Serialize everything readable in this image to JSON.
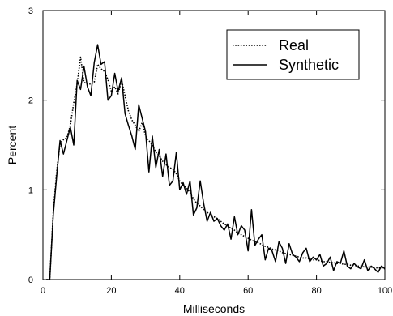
{
  "chart_data": {
    "type": "line",
    "title": "",
    "xlabel": "Milliseconds",
    "ylabel": "Percent",
    "xlim": [
      0,
      100
    ],
    "ylim": [
      0,
      3
    ],
    "x_ticks": [
      0,
      20,
      40,
      60,
      80,
      100
    ],
    "y_ticks": [
      0,
      1,
      2,
      3
    ],
    "grid": false,
    "legend_position": "top-right",
    "series": [
      {
        "name": "Real",
        "line_style": "dotted",
        "color": "#000000",
        "points": [
          [
            1,
            0.0
          ],
          [
            2,
            0.0
          ],
          [
            3,
            0.75
          ],
          [
            4,
            1.2
          ],
          [
            5,
            1.52
          ],
          [
            6,
            1.56
          ],
          [
            7,
            1.58
          ],
          [
            8,
            1.72
          ],
          [
            9,
            1.97
          ],
          [
            10,
            2.18
          ],
          [
            11,
            2.48
          ],
          [
            12,
            2.2
          ],
          [
            13,
            2.18
          ],
          [
            14,
            2.18
          ],
          [
            15,
            2.2
          ],
          [
            16,
            2.4
          ],
          [
            17,
            2.35
          ],
          [
            18,
            2.32
          ],
          [
            19,
            2.23
          ],
          [
            20,
            2.1
          ],
          [
            21,
            2.15
          ],
          [
            22,
            2.07
          ],
          [
            23,
            2.22
          ],
          [
            24,
            2.05
          ],
          [
            25,
            1.88
          ],
          [
            26,
            1.78
          ],
          [
            27,
            1.72
          ],
          [
            28,
            1.65
          ],
          [
            29,
            1.75
          ],
          [
            30,
            1.6
          ],
          [
            31,
            1.55
          ],
          [
            32,
            1.5
          ],
          [
            33,
            1.42
          ],
          [
            34,
            1.38
          ],
          [
            35,
            1.32
          ],
          [
            36,
            1.28
          ],
          [
            37,
            1.25
          ],
          [
            38,
            1.23
          ],
          [
            39,
            1.18
          ],
          [
            40,
            1.1
          ],
          [
            41,
            1.05
          ],
          [
            42,
            1.02
          ],
          [
            43,
            0.97
          ],
          [
            44,
            0.9
          ],
          [
            45,
            0.85
          ],
          [
            46,
            0.82
          ],
          [
            47,
            0.78
          ],
          [
            48,
            0.75
          ],
          [
            49,
            0.72
          ],
          [
            50,
            0.7
          ],
          [
            51,
            0.68
          ],
          [
            52,
            0.65
          ],
          [
            53,
            0.62
          ],
          [
            54,
            0.6
          ],
          [
            55,
            0.57
          ],
          [
            56,
            0.55
          ],
          [
            57,
            0.52
          ],
          [
            58,
            0.5
          ],
          [
            59,
            0.48
          ],
          [
            60,
            0.46
          ],
          [
            61,
            0.44
          ],
          [
            62,
            0.42
          ],
          [
            63,
            0.41
          ],
          [
            64,
            0.39
          ],
          [
            65,
            0.37
          ],
          [
            66,
            0.36
          ],
          [
            67,
            0.34
          ],
          [
            68,
            0.33
          ],
          [
            69,
            0.32
          ],
          [
            70,
            0.3
          ],
          [
            71,
            0.29
          ],
          [
            72,
            0.28
          ],
          [
            73,
            0.27
          ],
          [
            74,
            0.26
          ],
          [
            75,
            0.25
          ],
          [
            76,
            0.24
          ],
          [
            77,
            0.24
          ],
          [
            78,
            0.23
          ],
          [
            79,
            0.22
          ],
          [
            80,
            0.22
          ],
          [
            81,
            0.21
          ],
          [
            82,
            0.2
          ],
          [
            83,
            0.2
          ],
          [
            84,
            0.19
          ],
          [
            85,
            0.19
          ],
          [
            86,
            0.18
          ],
          [
            87,
            0.18
          ],
          [
            88,
            0.17
          ],
          [
            89,
            0.17
          ],
          [
            90,
            0.16
          ],
          [
            91,
            0.16
          ],
          [
            92,
            0.15
          ],
          [
            93,
            0.15
          ],
          [
            94,
            0.14
          ],
          [
            95,
            0.14
          ],
          [
            96,
            0.14
          ],
          [
            97,
            0.13
          ],
          [
            98,
            0.13
          ],
          [
            99,
            0.13
          ],
          [
            100,
            0.12
          ]
        ]
      },
      {
        "name": "Synthetic",
        "line_style": "solid",
        "color": "#000000",
        "points": [
          [
            1,
            0.0
          ],
          [
            2,
            0.0
          ],
          [
            3,
            0.72
          ],
          [
            4,
            1.15
          ],
          [
            5,
            1.55
          ],
          [
            6,
            1.4
          ],
          [
            7,
            1.55
          ],
          [
            8,
            1.7
          ],
          [
            9,
            1.5
          ],
          [
            10,
            2.22
          ],
          [
            11,
            2.12
          ],
          [
            12,
            2.38
          ],
          [
            13,
            2.15
          ],
          [
            14,
            2.05
          ],
          [
            15,
            2.42
          ],
          [
            16,
            2.62
          ],
          [
            17,
            2.4
          ],
          [
            18,
            2.43
          ],
          [
            19,
            2.0
          ],
          [
            20,
            2.05
          ],
          [
            21,
            2.3
          ],
          [
            22,
            2.1
          ],
          [
            23,
            2.25
          ],
          [
            24,
            1.85
          ],
          [
            25,
            1.72
          ],
          [
            26,
            1.6
          ],
          [
            27,
            1.45
          ],
          [
            28,
            1.95
          ],
          [
            29,
            1.8
          ],
          [
            30,
            1.65
          ],
          [
            31,
            1.2
          ],
          [
            32,
            1.6
          ],
          [
            33,
            1.25
          ],
          [
            34,
            1.45
          ],
          [
            35,
            1.15
          ],
          [
            36,
            1.4
          ],
          [
            37,
            1.05
          ],
          [
            38,
            1.1
          ],
          [
            39,
            1.42
          ],
          [
            40,
            1.0
          ],
          [
            41,
            1.08
          ],
          [
            42,
            0.95
          ],
          [
            43,
            1.1
          ],
          [
            44,
            0.72
          ],
          [
            45,
            0.8
          ],
          [
            46,
            1.1
          ],
          [
            47,
            0.85
          ],
          [
            48,
            0.65
          ],
          [
            49,
            0.75
          ],
          [
            50,
            0.65
          ],
          [
            51,
            0.68
          ],
          [
            52,
            0.6
          ],
          [
            53,
            0.55
          ],
          [
            54,
            0.62
          ],
          [
            55,
            0.45
          ],
          [
            56,
            0.7
          ],
          [
            57,
            0.5
          ],
          [
            58,
            0.6
          ],
          [
            59,
            0.55
          ],
          [
            60,
            0.32
          ],
          [
            61,
            0.78
          ],
          [
            62,
            0.38
          ],
          [
            63,
            0.45
          ],
          [
            64,
            0.5
          ],
          [
            65,
            0.22
          ],
          [
            66,
            0.35
          ],
          [
            67,
            0.32
          ],
          [
            68,
            0.2
          ],
          [
            69,
            0.42
          ],
          [
            70,
            0.35
          ],
          [
            71,
            0.18
          ],
          [
            72,
            0.4
          ],
          [
            73,
            0.28
          ],
          [
            74,
            0.25
          ],
          [
            75,
            0.2
          ],
          [
            76,
            0.3
          ],
          [
            77,
            0.35
          ],
          [
            78,
            0.2
          ],
          [
            79,
            0.25
          ],
          [
            80,
            0.22
          ],
          [
            81,
            0.28
          ],
          [
            82,
            0.15
          ],
          [
            83,
            0.18
          ],
          [
            84,
            0.25
          ],
          [
            85,
            0.1
          ],
          [
            86,
            0.2
          ],
          [
            87,
            0.18
          ],
          [
            88,
            0.32
          ],
          [
            89,
            0.15
          ],
          [
            90,
            0.12
          ],
          [
            91,
            0.18
          ],
          [
            92,
            0.14
          ],
          [
            93,
            0.12
          ],
          [
            94,
            0.22
          ],
          [
            95,
            0.1
          ],
          [
            96,
            0.15
          ],
          [
            97,
            0.12
          ],
          [
            98,
            0.08
          ],
          [
            99,
            0.15
          ],
          [
            100,
            0.12
          ]
        ]
      }
    ]
  }
}
